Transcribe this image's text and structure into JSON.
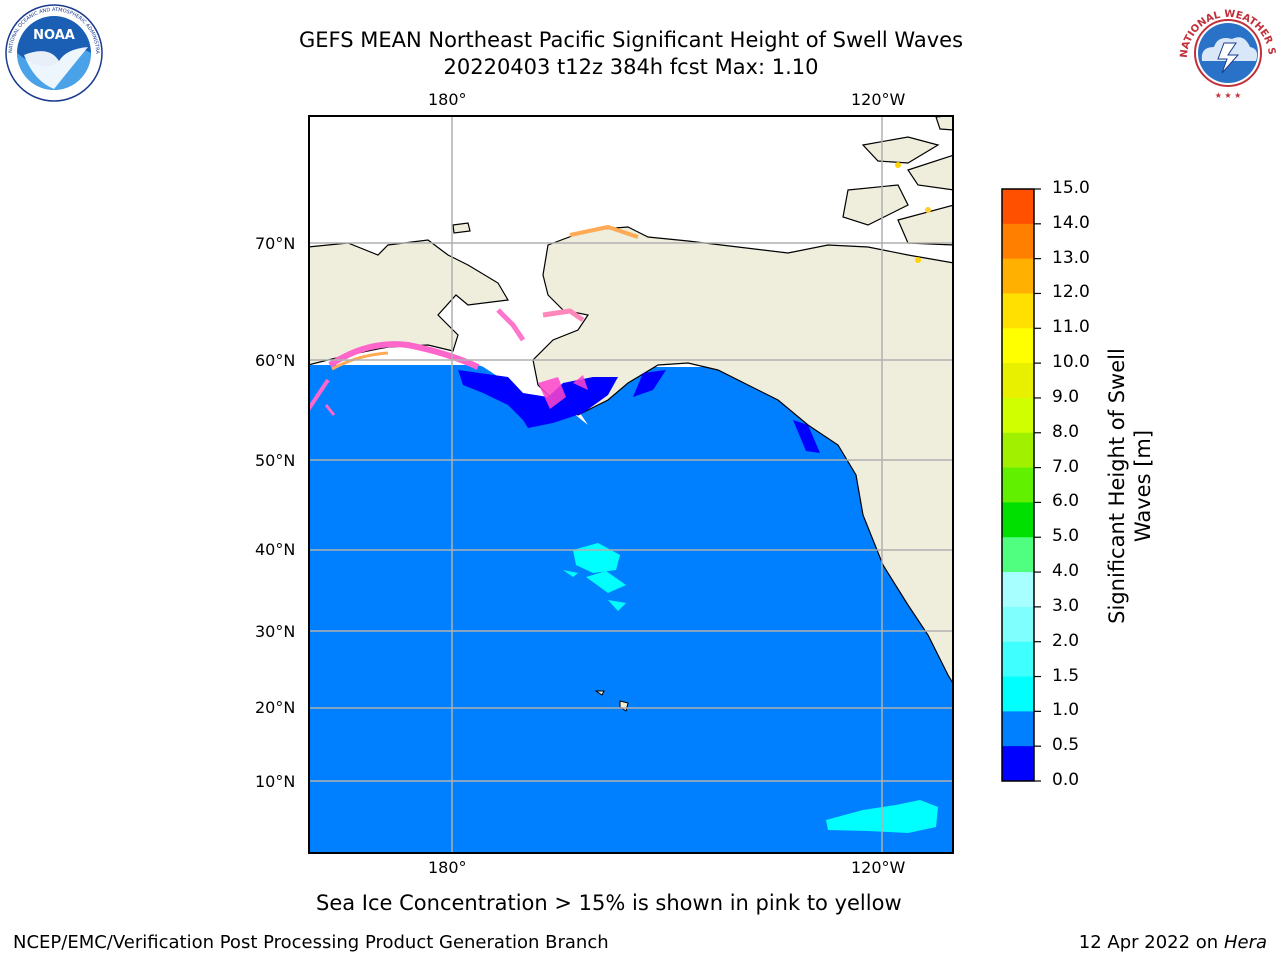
{
  "title": {
    "line1": "GEFS MEAN Northeast Pacific Significant Height of Swell Waves",
    "line2": "20220403 t12z 384h fcst   Max: 1.10"
  },
  "logos": {
    "noaa": {
      "text": "NOAA",
      "ring_text": "NATIONAL OCEANIC AND ATMOSPHERIC ADMINISTRATION · U.S. DEPARTMENT OF COMMERCE"
    },
    "nws": {
      "ring_text": "NATIONAL WEATHER SERVICE"
    }
  },
  "map": {
    "lon_labels_top": [
      "180°",
      "120°W"
    ],
    "lon_labels_bottom": [
      "180°",
      "120°W"
    ],
    "lat_labels": [
      "70°N",
      "60°N",
      "50°N",
      "40°N",
      "30°N",
      "20°N",
      "10°N"
    ],
    "colors": {
      "ocean": "#0080ff",
      "land": "#efeddc",
      "grid": "#b0b0b0"
    }
  },
  "colorbar": {
    "title_line1": "Significant Height of Swell",
    "title_line2": "Waves [m]",
    "ticks": [
      "15.0",
      "14.0",
      "13.0",
      "12.0",
      "11.0",
      "10.0",
      "9.0",
      "8.0",
      "7.0",
      "6.0",
      "5.0",
      "4.0",
      "3.0",
      "2.0",
      "1.5",
      "1.0",
      "0.5",
      "0.0"
    ],
    "colors_bottom_to_top": [
      "#0000ff",
      "#0080ff",
      "#00ffff",
      "#40ffff",
      "#80ffff",
      "#a8ffff",
      "#50ff80",
      "#00e000",
      "#60f000",
      "#a0f000",
      "#d0ff00",
      "#e8f000",
      "#ffff00",
      "#ffe000",
      "#ffb000",
      "#ff8000",
      "#ff5000",
      "#ff3000",
      "#ff0000"
    ]
  },
  "caption": "Sea Ice Concentration > 15% is shown in pink to yellow",
  "footer": {
    "left": "NCEP/EMC/Verification Post Processing Product Generation Branch",
    "date": "12 Apr 2022 on ",
    "host": "Hera"
  }
}
